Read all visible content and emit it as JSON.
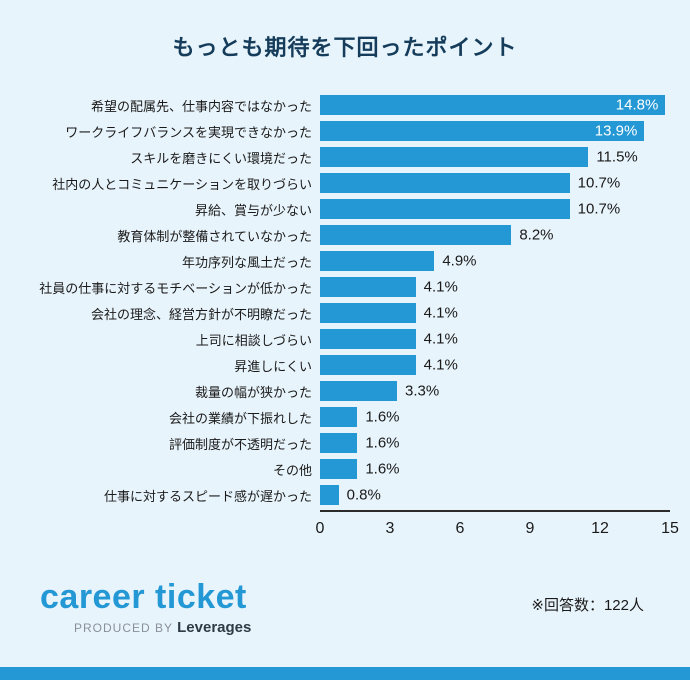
{
  "title": "もっとも期待を下回ったポイント",
  "chart_data": {
    "type": "bar",
    "orientation": "horizontal",
    "title": "もっとも期待を下回ったポイント",
    "categories": [
      "希望の配属先、仕事内容ではなかった",
      "ワークライフバランスを実現できなかった",
      "スキルを磨きにくい環境だった",
      "社内の人とコミュニケーションを取りづらい",
      "昇給、賞与が少ない",
      "教育体制が整備されていなかった",
      "年功序列な風土だった",
      "社員の仕事に対するモチベーションが低かった",
      "会社の理念、経営方針が不明瞭だった",
      "上司に相談しづらい",
      "昇進しにくい",
      "裁量の幅が狭かった",
      "会社の業績が下振れした",
      "評価制度が不透明だった",
      "その他",
      "仕事に対するスピード感が遅かった"
    ],
    "values": [
      14.8,
      13.9,
      11.5,
      10.7,
      10.7,
      8.2,
      4.9,
      4.1,
      4.1,
      4.1,
      4.1,
      3.3,
      1.6,
      1.6,
      1.6,
      0.8
    ],
    "value_suffix": "%",
    "xlim": [
      0,
      15
    ],
    "x_ticks": [
      0,
      3,
      6,
      9,
      12,
      15
    ],
    "inside_label_threshold": 13,
    "bar_color": "#2498d5",
    "grid": false,
    "legend": "none"
  },
  "footer": {
    "logo_text": "career ticket",
    "produced_by_label": "PRODUCED BY",
    "producer": "Leverages",
    "note": "※回答数：122人"
  },
  "colors": {
    "background": "#e8f4fb",
    "bar": "#2498d5",
    "title": "#153c5a",
    "text": "#1a1a1a",
    "bottom_strip": "#2498d5"
  }
}
